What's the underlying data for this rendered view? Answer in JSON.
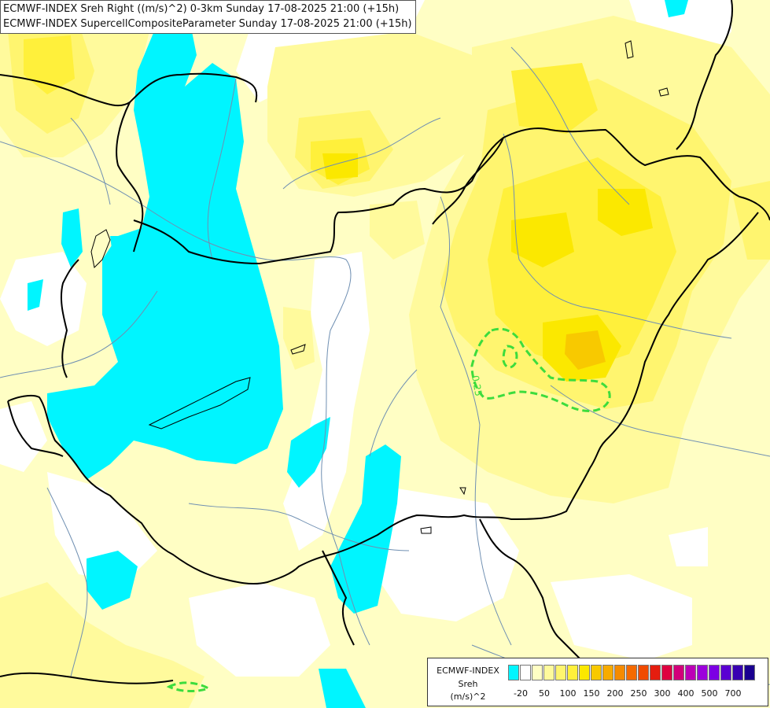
{
  "titles": {
    "line1": "ECMWF-INDEX Sreh Right ((m/s)^2) 0-3km Sunday 17-08-2025 21:00 (+15h)",
    "line2": "ECMWF-INDEX SupercellCompositeParameter Sunday 17-08-2025 21:00 (+15h)"
  },
  "contour_label": "0.25",
  "legend": {
    "line1": "ECMWF-INDEX",
    "line2": "Sreh",
    "line3": "(m/s)^2",
    "colors": [
      "#00f5ff",
      "#ffffff",
      "#fffec4",
      "#fffa9c",
      "#fff56f",
      "#fff03b",
      "#fbe800",
      "#f8c900",
      "#f7ab00",
      "#f58b00",
      "#f56a00",
      "#f04b00",
      "#e51d0f",
      "#de0040",
      "#d2007a",
      "#bc00b6",
      "#9c00dc",
      "#7c00e4",
      "#5a00d2",
      "#3800b2",
      "#1a0090"
    ],
    "ticks": [
      "-20",
      "50",
      "100",
      "150",
      "200",
      "250",
      "300",
      "400",
      "500",
      "700"
    ]
  },
  "colors": {
    "cyan": "#00f5ff",
    "yellow_light": "#fffec4",
    "yellow": "#fffa9c",
    "yellow_mid": "#fff56f",
    "yellow_strong": "#fff03b",
    "yellow_deep": "#fbe800",
    "orange": "#f8c900",
    "contour": "#3ddc3d",
    "border": "#000000",
    "river": "#6f8fb2"
  }
}
